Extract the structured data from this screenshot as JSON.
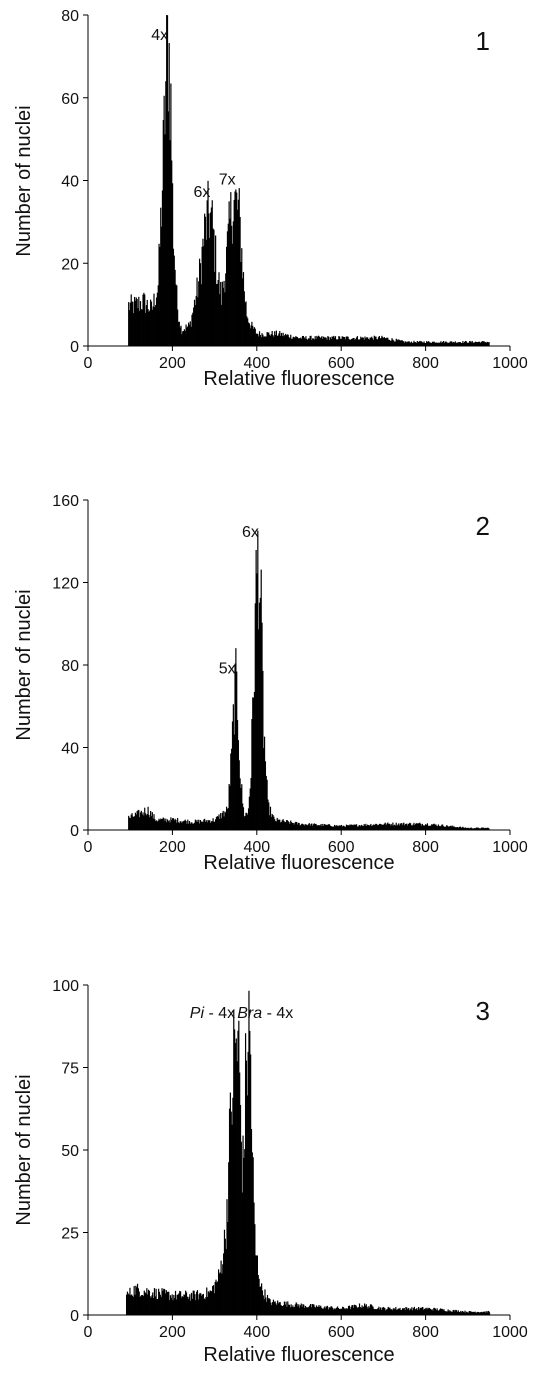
{
  "chart_data": [
    {
      "type": "bar",
      "panel_number": "1",
      "xlabel": "Relative fluorescence",
      "ylabel": "Number of nuclei",
      "xlim": [
        0,
        1000
      ],
      "ylim": [
        0,
        80
      ],
      "xticks": [
        "0",
        "200",
        "400",
        "600",
        "800",
        "1000"
      ],
      "yticks": [
        "0",
        "20",
        "40",
        "60",
        "80"
      ],
      "annotations": [
        {
          "text": "4x",
          "x": 190,
          "y": 74
        },
        {
          "text": "6x",
          "x": 290,
          "y": 36
        },
        {
          "text": "7x",
          "x": 350,
          "y": 39
        }
      ],
      "series": [
        {
          "x": [
            95,
            110,
            130,
            150,
            165,
            175,
            182,
            188,
            192,
            196,
            200,
            210,
            220,
            240,
            260,
            275,
            285,
            292,
            298,
            305,
            315,
            325,
            335,
            342,
            350,
            356,
            362,
            368,
            375,
            385,
            400,
            450,
            500,
            550,
            600,
            650,
            700,
            750,
            800,
            850,
            900,
            950
          ],
          "y": [
            10,
            10,
            11,
            9,
            15,
            40,
            62,
            76,
            70,
            55,
            30,
            10,
            4,
            5,
            15,
            28,
            33,
            31,
            25,
            18,
            12,
            20,
            30,
            36,
            35,
            33,
            25,
            15,
            8,
            5,
            3,
            3,
            2,
            2,
            2,
            2,
            2,
            1,
            1,
            1,
            1,
            1
          ]
        }
      ]
    },
    {
      "type": "bar",
      "panel_number": "2",
      "xlabel": "Relative fluorescence",
      "ylabel": "Number of nuclei",
      "xlim": [
        0,
        1000
      ],
      "ylim": [
        0,
        160
      ],
      "xticks": [
        "0",
        "200",
        "400",
        "600",
        "800",
        "1000"
      ],
      "yticks": [
        "0",
        "40",
        "80",
        "120",
        "160"
      ],
      "annotations": [
        {
          "text": "5x",
          "x": 350,
          "y": 76
        },
        {
          "text": "6x",
          "x": 405,
          "y": 142
        }
      ],
      "series": [
        {
          "x": [
            95,
            120,
            140,
            160,
            200,
            250,
            300,
            330,
            340,
            345,
            350,
            355,
            360,
            368,
            378,
            385,
            392,
            398,
            403,
            408,
            415,
            425,
            440,
            500,
            600,
            700,
            800,
            900,
            950
          ],
          "y": [
            6,
            8,
            10,
            5,
            5,
            4,
            5,
            10,
            40,
            65,
            72,
            55,
            25,
            8,
            8,
            30,
            80,
            125,
            138,
            110,
            50,
            12,
            5,
            3,
            2,
            3,
            3,
            1,
            1
          ]
        }
      ]
    },
    {
      "type": "bar",
      "panel_number": "3",
      "xlabel": "Relative fluorescence",
      "ylabel": "Number of nuclei",
      "xlim": [
        0,
        1000
      ],
      "ylim": [
        0,
        100
      ],
      "xticks": [
        "0",
        "200",
        "400",
        "600",
        "800",
        "1000"
      ],
      "yticks": [
        "0",
        "25",
        "50",
        "75",
        "100"
      ],
      "annotations": [
        {
          "text": "Pi",
          "suffix": " - 4x",
          "x": 295,
          "y": 90
        },
        {
          "text": "Bra",
          "suffix": " - 4x",
          "x": 420,
          "y": 90
        }
      ],
      "series": [
        {
          "x": [
            90,
            110,
            150,
            200,
            250,
            290,
            310,
            325,
            335,
            343,
            350,
            356,
            362,
            366,
            372,
            378,
            383,
            388,
            395,
            410,
            430,
            500,
            600,
            650,
            700,
            800,
            900,
            950
          ],
          "y": [
            6,
            8,
            7,
            6,
            6,
            7,
            12,
            25,
            55,
            78,
            85,
            80,
            55,
            45,
            70,
            88,
            85,
            50,
            20,
            8,
            4,
            3,
            2,
            3,
            2,
            2,
            1,
            1
          ]
        }
      ]
    }
  ]
}
